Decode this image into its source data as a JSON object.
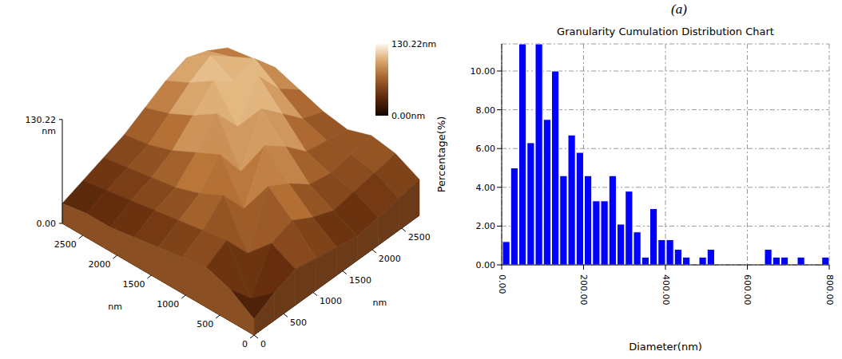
{
  "panel_label": "(a)",
  "chart_data": [
    {
      "type": "surface",
      "x": [
        0,
        350,
        700,
        1050,
        1400,
        1750,
        2100,
        2450,
        2800
      ],
      "y": [
        0,
        350,
        700,
        1050,
        1400,
        1750,
        2100,
        2450,
        2800
      ],
      "z": [
        [
          20,
          35,
          45,
          40,
          35,
          30,
          35,
          40,
          45
        ],
        [
          40,
          10,
          60,
          70,
          55,
          45,
          50,
          55,
          60
        ],
        [
          50,
          65,
          30,
          95,
          80,
          60,
          55,
          60,
          65
        ],
        [
          45,
          60,
          85,
          50,
          110,
          90,
          65,
          60,
          55
        ],
        [
          40,
          55,
          70,
          100,
          60,
          120,
          95,
          70,
          60
        ],
        [
          35,
          50,
          60,
          85,
          115,
          80,
          125,
          90,
          70
        ],
        [
          30,
          45,
          55,
          70,
          95,
          120,
          100,
          110,
          80
        ],
        [
          30,
          40,
          50,
          60,
          80,
          100,
          115,
          95,
          75
        ],
        [
          25,
          35,
          45,
          55,
          70,
          85,
          95,
          85,
          70
        ]
      ],
      "xlim": [
        0,
        2800
      ],
      "ylim": [
        0,
        2800
      ],
      "xticks": [
        0,
        500,
        1000,
        1500,
        2000,
        2500
      ],
      "yticks": [
        0,
        500,
        1000,
        1500,
        2000,
        2500
      ],
      "x_label": "nm",
      "y_label": "nm",
      "zlim": [
        0,
        130.22
      ],
      "zticks": [
        {
          "value": 0,
          "label": "0.00"
        },
        {
          "value": 130.22,
          "label": "130.22"
        }
      ],
      "z_label": "nm",
      "colorbar": {
        "range": [
          0,
          130.22
        ],
        "ticks": [
          {
            "value": 130.22,
            "label": "130.22nm"
          },
          {
            "value": 0,
            "label": "0.00nm"
          }
        ]
      }
    },
    {
      "type": "histogram",
      "title": "Granularity Cumulation Distribution Chart",
      "x_label": "Diameter(nm)",
      "y_label": "Percentage(%)",
      "bins": [
        0,
        20,
        40,
        60,
        80,
        100,
        120,
        140,
        160,
        180,
        200,
        220,
        240,
        260,
        280,
        300,
        320,
        340,
        360,
        380,
        400,
        420,
        440,
        460,
        480,
        500,
        520,
        540,
        560,
        580,
        600,
        620,
        640,
        660,
        680,
        700,
        720,
        740,
        760,
        780,
        800
      ],
      "values": [
        1.2,
        5.0,
        11.4,
        6.3,
        11.4,
        7.5,
        10.0,
        4.6,
        6.7,
        5.8,
        4.6,
        3.3,
        3.3,
        4.6,
        2.1,
        3.8,
        1.7,
        0.4,
        2.9,
        1.3,
        1.3,
        0.8,
        0.4,
        0,
        0.4,
        0.8,
        0,
        0,
        0,
        0,
        0,
        0,
        0.8,
        0.4,
        0.4,
        0,
        0.4,
        0,
        0,
        0.4
      ],
      "color": "#0000ff",
      "xlim": [
        0,
        800
      ],
      "ylim": [
        0,
        11.4
      ],
      "xticks": [
        {
          "value": 0,
          "label": "0.00"
        },
        {
          "value": 200,
          "label": "200.00"
        },
        {
          "value": 400,
          "label": "400.00"
        },
        {
          "value": 600,
          "label": "600.00"
        },
        {
          "value": 800,
          "label": "800.00"
        }
      ],
      "yticks": [
        {
          "value": 0,
          "label": "0.00"
        },
        {
          "value": 2,
          "label": "2.00"
        },
        {
          "value": 4,
          "label": "4.00"
        },
        {
          "value": 6,
          "label": "6.00"
        },
        {
          "value": 8,
          "label": "8.00"
        },
        {
          "value": 10,
          "label": "10.00"
        }
      ],
      "grid": true
    }
  ]
}
